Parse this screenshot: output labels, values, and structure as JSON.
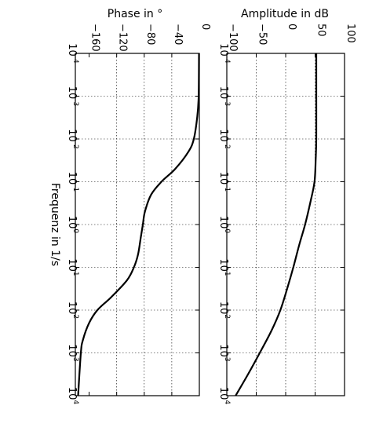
{
  "chart_data": [
    {
      "type": "line",
      "title": "Amplitude in dB",
      "xlabel": "Frequenz in 1/s",
      "xscale": "log",
      "xlim": [
        0.0001,
        10000
      ],
      "ylim": [
        -100,
        100
      ],
      "x_ticks": [
        "10^-4",
        "10^-3",
        "10^-2",
        "10^-1",
        "10^0",
        "10^1",
        "10^2",
        "10^3",
        "10^4"
      ],
      "y_ticks": [
        "−100",
        "−50",
        "0",
        "50",
        "100"
      ],
      "grid": true,
      "series": [
        {
          "x": [
            0.0001,
            0.001,
            0.01,
            0.03,
            0.1,
            0.3,
            1,
            3,
            10,
            30,
            100,
            300,
            1000,
            3000,
            10000
          ],
          "values": [
            52,
            52,
            52,
            51,
            49,
            42,
            33,
            23,
            13,
            3,
            -9,
            -24,
            -44,
            -63,
            -85
          ]
        }
      ]
    },
    {
      "type": "line",
      "title": "Phase in °",
      "xlabel": "Frequenz in 1/s",
      "xscale": "log",
      "xlim": [
        0.0001,
        10000
      ],
      "ylim": [
        -180,
        0
      ],
      "x_ticks": [
        "10^-4",
        "10^-3",
        "10^-2",
        "10^-1",
        "10^0",
        "10^1",
        "10^2",
        "10^3",
        "10^4"
      ],
      "y_ticks": [
        "−160",
        "−120",
        "−80",
        "−40",
        "0"
      ],
      "grid": true,
      "series": [
        {
          "x": [
            0.0001,
            0.001,
            0.003,
            0.01,
            0.02,
            0.05,
            0.1,
            0.2,
            0.5,
            1,
            2,
            5,
            10,
            20,
            50,
            100,
            200,
            500,
            1000,
            10000
          ],
          "values": [
            -0.5,
            -1,
            -3,
            -8,
            -16,
            -35,
            -55,
            -70,
            -79,
            -82,
            -85,
            -89,
            -95,
            -105,
            -128,
            -148,
            -160,
            -169,
            -172,
            -176
          ]
        }
      ]
    }
  ]
}
